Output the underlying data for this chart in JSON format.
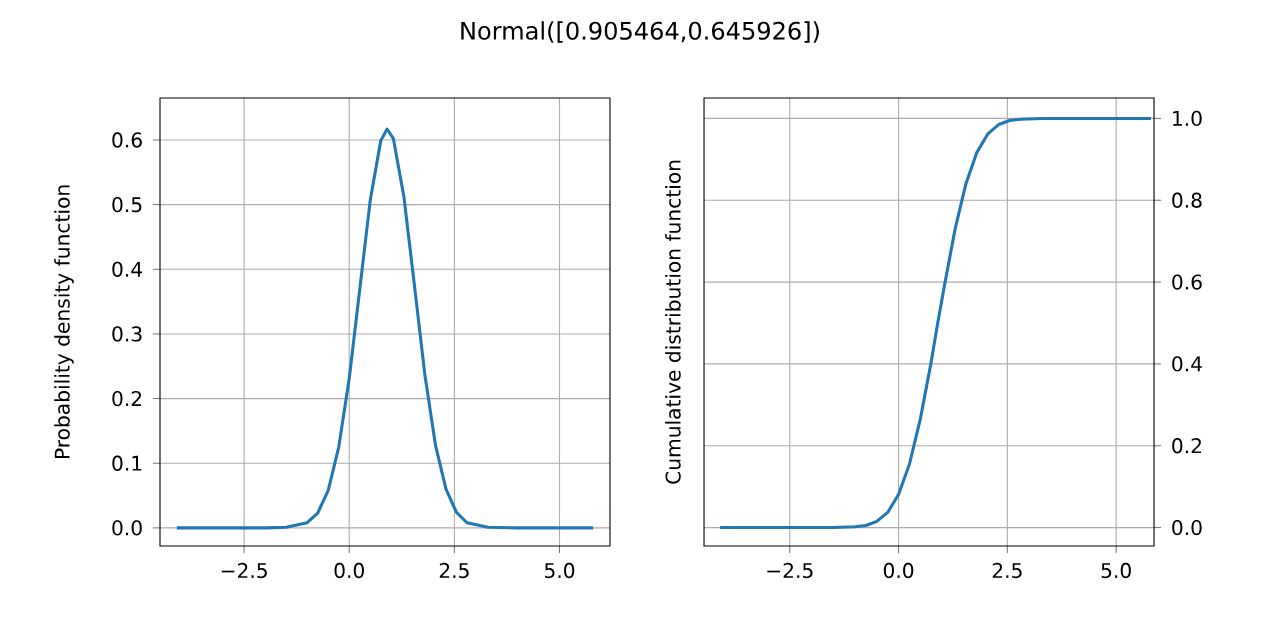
{
  "chart_data": [
    {
      "type": "line",
      "title": "Normal([0.905464,0.645926])",
      "ylabel": "Probability density function",
      "grid": true,
      "color": "#1f77b4",
      "x": [
        -4.1,
        -2,
        -1.5,
        -1,
        -0.75,
        -0.5,
        -0.25,
        0,
        0.25,
        0.5,
        0.75,
        0.9,
        1.05,
        1.3,
        1.55,
        1.8,
        2.05,
        2.3,
        2.55,
        2.8,
        3.3,
        4,
        5.8
      ],
      "values": [
        0,
        0,
        0.001,
        0.008,
        0.023,
        0.058,
        0.125,
        0.231,
        0.369,
        0.507,
        0.599,
        0.617,
        0.602,
        0.512,
        0.375,
        0.236,
        0.128,
        0.06,
        0.024,
        0.008,
        0.001,
        0,
        0
      ],
      "xlim": [
        -4.5,
        6.2
      ],
      "ylim": [
        -0.028,
        0.665
      ],
      "xticks": [
        {
          "value": -2.5,
          "label": "−2.5"
        },
        {
          "value": 0,
          "label": "0.0"
        },
        {
          "value": 2.5,
          "label": "2.5"
        },
        {
          "value": 5,
          "label": "5.0"
        }
      ],
      "yticks": [
        {
          "value": 0,
          "label": "0.0"
        },
        {
          "value": 0.1,
          "label": "0.1"
        },
        {
          "value": 0.2,
          "label": "0.2"
        },
        {
          "value": 0.3,
          "label": "0.3"
        },
        {
          "value": 0.4,
          "label": "0.4"
        },
        {
          "value": 0.5,
          "label": "0.5"
        },
        {
          "value": 0.6,
          "label": "0.6"
        }
      ]
    },
    {
      "type": "line",
      "ylabel": "Cumulative distribution function",
      "grid": true,
      "color": "#1f77b4",
      "x": [
        -4.1,
        -2,
        -1.5,
        -1,
        -0.75,
        -0.5,
        -0.25,
        0,
        0.25,
        0.5,
        0.75,
        0.9,
        1.05,
        1.3,
        1.55,
        1.8,
        2.05,
        2.3,
        2.55,
        2.8,
        3.3,
        4,
        5.8
      ],
      "values": [
        0,
        0,
        0,
        0.002,
        0.005,
        0.015,
        0.037,
        0.081,
        0.155,
        0.265,
        0.405,
        0.5,
        0.589,
        0.73,
        0.841,
        0.917,
        0.962,
        0.985,
        0.995,
        0.998,
        1,
        1,
        1
      ],
      "xlim": [
        -4.47,
        5.87
      ],
      "ylim": [
        -0.045,
        1.05
      ],
      "xticks": [
        {
          "value": -2.5,
          "label": "−2.5"
        },
        {
          "value": 0,
          "label": "0.0"
        },
        {
          "value": 2.5,
          "label": "2.5"
        },
        {
          "value": 5,
          "label": "5.0"
        }
      ],
      "yticks": [
        {
          "value": 0,
          "label": "0.0"
        },
        {
          "value": 0.2,
          "label": "0.2"
        },
        {
          "value": 0.4,
          "label": "0.4"
        },
        {
          "value": 0.6,
          "label": "0.6"
        },
        {
          "value": 0.8,
          "label": "0.8"
        },
        {
          "value": 1,
          "label": "1.0"
        }
      ]
    }
  ]
}
